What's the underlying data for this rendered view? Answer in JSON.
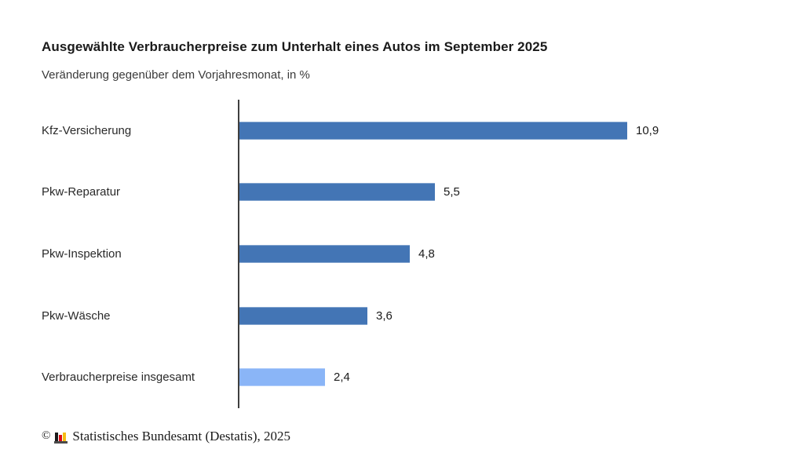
{
  "header": {
    "title": "Ausgewählte Verbraucherpreise zum Unterhalt eines Autos im September 2025",
    "subtitle": "Veränderung gegenüber dem Vorjahresmonat, in %"
  },
  "chart_data": {
    "type": "bar",
    "orientation": "horizontal",
    "title": "Ausgewählte Verbraucherpreise zum Unterhalt eines Autos im September 2025",
    "subtitle": "Veränderung gegenüber dem Vorjahresmonat, in %",
    "categories": [
      "Kfz-Versicherung",
      "Pkw-Reparatur",
      "Pkw-Inspektion",
      "Pkw-Wäsche",
      "Verbraucherpreise insgesamt"
    ],
    "values": [
      10.9,
      5.5,
      4.8,
      3.6,
      2.4
    ],
    "value_labels": [
      "10,9",
      "5,5",
      "4,8",
      "3,6",
      "2,4"
    ],
    "bar_colors": [
      "#4375b5",
      "#4375b5",
      "#4375b5",
      "#4375b5",
      "#8ab5f7"
    ],
    "xlabel": "",
    "ylabel": "",
    "xlim": [
      0,
      12.3
    ],
    "grid": false,
    "legend": "none",
    "unit": "%"
  },
  "colors": {
    "bar_primary": "#4375b5",
    "bar_light": "#8ab5f7",
    "axis": "#3f3f3f",
    "text": "#1a1a1a"
  },
  "footer": {
    "copyright_sign": "©",
    "source": "Statistisches Bundesamt (Destatis), 2025",
    "logo": {
      "icon": "destatis-bar-chart-logo",
      "black": "#1a1a1a",
      "red": "#dd0b15",
      "gold": "#f6bd13",
      "base": "#4a4a4a"
    }
  }
}
